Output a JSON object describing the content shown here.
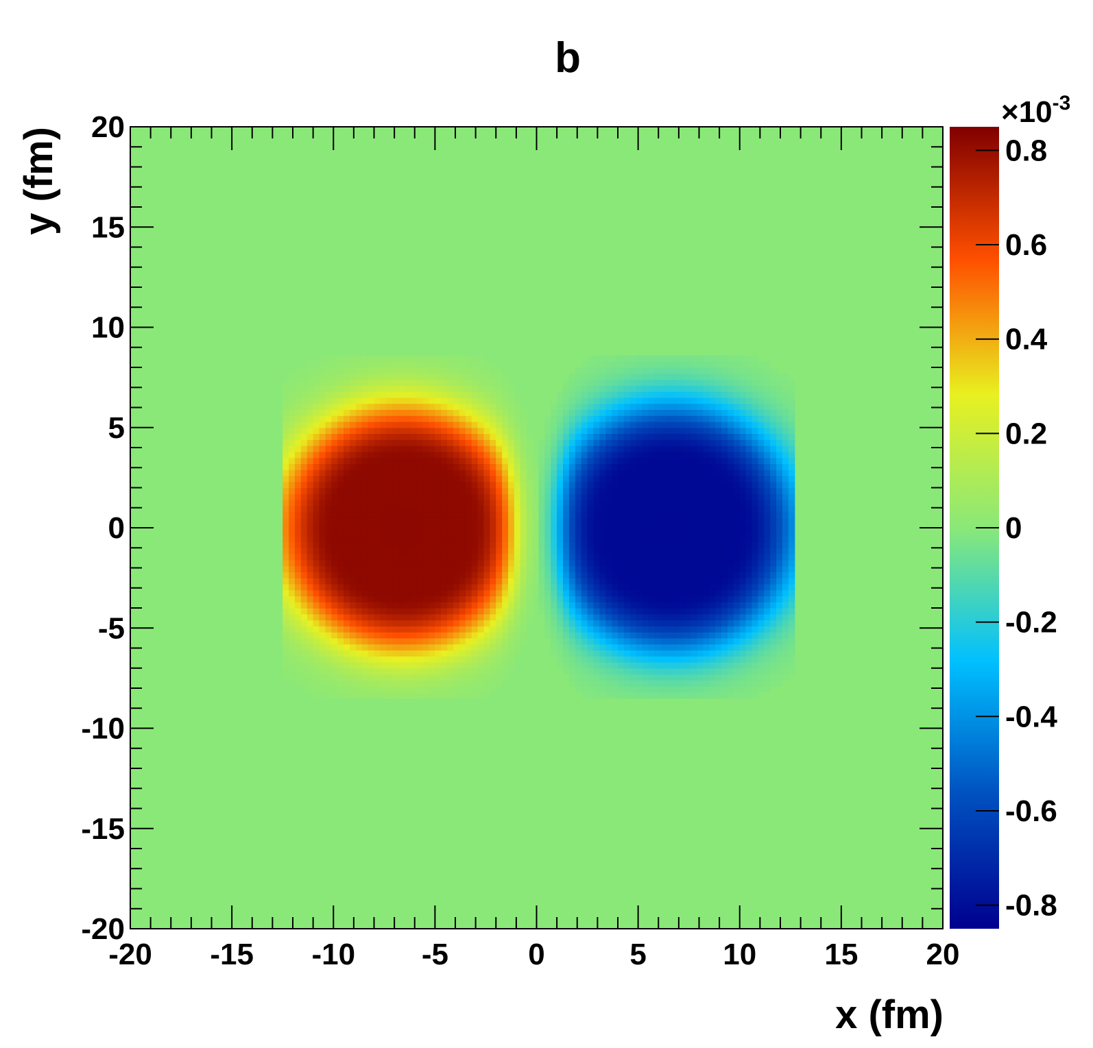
{
  "chart_data": {
    "type": "heatmap",
    "title": "b",
    "xlabel": "x (fm)",
    "ylabel": "y (fm)",
    "xlim": [
      -20,
      20
    ],
    "ylim": [
      -20,
      20
    ],
    "x_ticks": [
      "-20",
      "-15",
      "-10",
      "-5",
      "0",
      "5",
      "10",
      "15",
      "20"
    ],
    "y_ticks": [
      "-20",
      "-15",
      "-10",
      "-5",
      "0",
      "5",
      "10",
      "15",
      "20"
    ],
    "colorbar": {
      "range": [
        -0.85,
        0.85
      ],
      "multiplier": "×10",
      "exponent": "-3",
      "ticks": [
        "-0.8",
        "-0.6",
        "-0.4",
        "-0.2",
        "0",
        "0.2",
        "0.4",
        "0.6",
        "0.8"
      ],
      "palette": [
        "#00008f",
        "#0050c0",
        "#00c0ff",
        "#8ae878",
        "#e8f020",
        "#ff5000",
        "#800000"
      ]
    },
    "features": [
      {
        "name": "positive lobe",
        "center": [
          -3.8,
          0
        ],
        "peak": 0.82,
        "extent_x": [
          -10.5,
          -0.8
        ],
        "extent_y": [
          -6.5,
          6.5
        ]
      },
      {
        "name": "negative lobe",
        "center": [
          3.8,
          0
        ],
        "peak": -0.82,
        "extent_x": [
          0.8,
          10.5
        ],
        "extent_y": [
          -6.5,
          6.5
        ]
      }
    ],
    "grid": false
  }
}
